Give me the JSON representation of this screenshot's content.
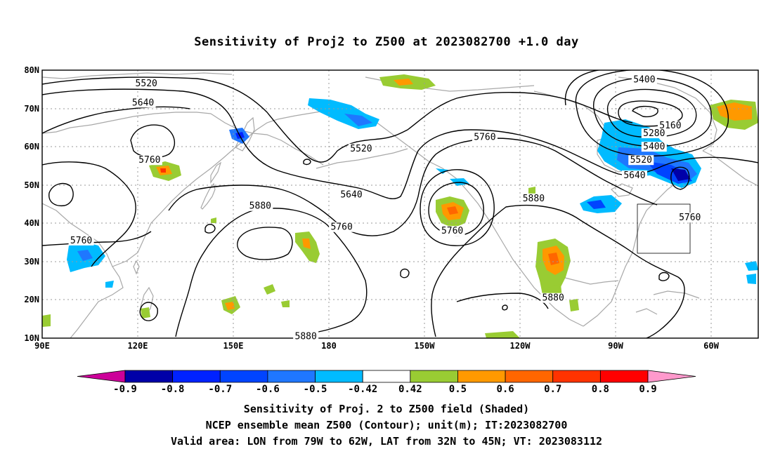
{
  "title": "Sensitivity of Proj2 to Z500 at 2023082700 +1.0 day",
  "lat_labels": [
    "80N",
    "70N",
    "60N",
    "50N",
    "40N",
    "30N",
    "20N",
    "10N"
  ],
  "lon_labels": [
    "90E",
    "120E",
    "150E",
    "180",
    "150W",
    "120W",
    "90W",
    "60W"
  ],
  "contour_labels": [
    {
      "text": "5520",
      "lon": 122,
      "lat": 76.5
    },
    {
      "text": "5640",
      "lon": 121,
      "lat": 71.5
    },
    {
      "text": "5760",
      "lon": 123,
      "lat": 56.5
    },
    {
      "text": "5760",
      "lon": 102,
      "lat": 35.5
    },
    {
      "text": "5880",
      "lon": 157,
      "lat": 44.5
    },
    {
      "text": "5880",
      "lon": 171,
      "lat": 10.5
    },
    {
      "text": "5520",
      "lon": -172,
      "lat": 59.5
    },
    {
      "text": "5640",
      "lon": -175,
      "lat": 47.5
    },
    {
      "text": "5760",
      "lon": -178,
      "lat": 39
    },
    {
      "text": "5760",
      "lon": -144,
      "lat": 38
    },
    {
      "text": "5760",
      "lon": -134,
      "lat": 62.5
    },
    {
      "text": "5880",
      "lon": -119,
      "lat": 46.5
    },
    {
      "text": "5880",
      "lon": -113,
      "lat": 20.5
    },
    {
      "text": "5400",
      "lon": -85,
      "lat": 77.5
    },
    {
      "text": "5160",
      "lon": -77,
      "lat": 65.5
    },
    {
      "text": "5280",
      "lon": -82,
      "lat": 63.5
    },
    {
      "text": "5400",
      "lon": -82,
      "lat": 60
    },
    {
      "text": "5520",
      "lon": -86,
      "lat": 56.5
    },
    {
      "text": "5640",
      "lon": -88,
      "lat": 52.5
    },
    {
      "text": "5760",
      "lon": -71,
      "lat": 41.5
    }
  ],
  "valid_area": {
    "lon": [
      -79,
      -62
    ],
    "lat": [
      32,
      45
    ]
  },
  "colorbar": {
    "labels": [
      "-0.9",
      "-0.8",
      "-0.7",
      "-0.6",
      "-0.5",
      "-0.42",
      "0.42",
      "0.5",
      "0.6",
      "0.7",
      "0.8",
      "0.9"
    ],
    "colors": [
      "#0000a8",
      "#0022ff",
      "#0044ff",
      "#1f77ff",
      "#00bbff",
      "#ffffff",
      "#99cc33",
      "#ff9900",
      "#ff6600",
      "#ff3300",
      "#ff0000"
    ],
    "low_end_color": "#cc0099",
    "high_end_color": "#ff99cc"
  },
  "captions": [
    "Sensitivity of Proj. 2 to Z500 field (Shaded)",
    "NCEP ensemble mean Z500 (Contour); unit(m); IT:2023082700",
    "Valid area: LON from 79W to 62W, LAT from 32N to 45N; VT: 2023083112"
  ]
}
